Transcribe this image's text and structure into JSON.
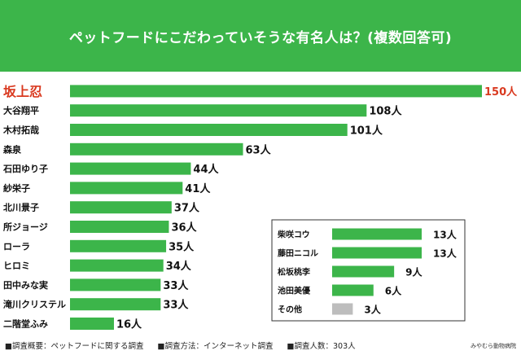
{
  "header": {
    "title": "ペットフードにこだわっていそうな有名人は？(複数回答可)"
  },
  "colors": {
    "bar": "#3cb54a",
    "highlight": "#d9391f",
    "other": "#bdbdbd",
    "title_bg": "#3cb54a"
  },
  "chart_data": {
    "type": "bar",
    "orientation": "horizontal",
    "title": "ペットフードにこだわっていそうな有名人は？(複数回答可)",
    "unit": "人",
    "xlim": [
      0,
      150
    ],
    "categories": [
      "坂上忍",
      "大谷翔平",
      "木村拓哉",
      "森泉",
      "石田ゆり子",
      "紗栄子",
      "北川景子",
      "所ジョージ",
      "ローラ",
      "ヒロミ",
      "田中みな実",
      "滝川クリステル",
      "二階堂ふみ"
    ],
    "values": [
      150,
      108,
      101,
      63,
      44,
      41,
      37,
      36,
      35,
      34,
      33,
      33,
      16
    ],
    "value_labels": [
      "150人",
      "108人",
      "101人",
      "63人",
      "44人",
      "41人",
      "37人",
      "36人",
      "35人",
      "34人",
      "33人",
      "33人",
      "16人"
    ],
    "highlight_index": 0,
    "inset": {
      "categories": [
        "柴咲コウ",
        "藤田ニコル",
        "松坂桃李",
        "池田美優",
        "その他"
      ],
      "values": [
        13,
        13,
        9,
        6,
        3
      ],
      "value_labels": [
        "13人",
        "13人",
        "9人",
        "6人",
        "3人"
      ],
      "other_index": 4
    }
  },
  "footer": {
    "overview": "■調査概要：ペットフードに関する調査",
    "method": "■調査方法：インターネット調査",
    "respondents": "■調査人数：303人",
    "credit": "みやむら動物病院"
  }
}
